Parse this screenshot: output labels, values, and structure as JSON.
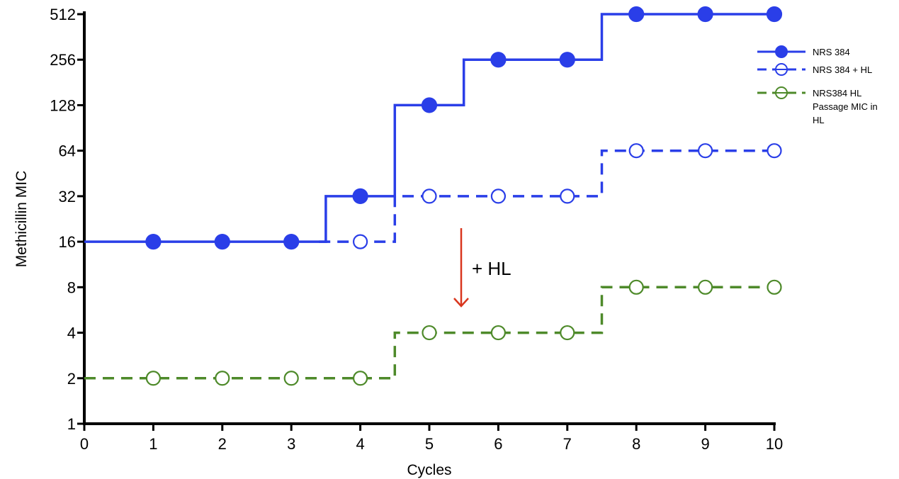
{
  "chart_data": {
    "type": "line",
    "line_style": "step",
    "xlabel": "Cycles",
    "ylabel": "Methicillin MIC",
    "y_scale": "log2",
    "xlim": [
      0,
      10
    ],
    "ylim": [
      1,
      512
    ],
    "x_ticks": [
      "0",
      "1",
      "2",
      "3",
      "4",
      "5",
      "6",
      "7",
      "8",
      "9",
      "10"
    ],
    "y_ticks": [
      "1",
      "2",
      "4",
      "8",
      "16",
      "32",
      "64",
      "128",
      "256",
      "512"
    ],
    "grid": false,
    "legend_position": "right",
    "series": [
      {
        "name": "NRS 384",
        "color": "#2a3ee8",
        "line": "solid",
        "marker": "filled-circle",
        "x": [
          1,
          2,
          3,
          4,
          5,
          6,
          7,
          8,
          9,
          10
        ],
        "y": [
          16,
          16,
          16,
          32,
          128,
          256,
          256,
          512,
          512,
          512
        ]
      },
      {
        "name": "NRS 384 + HL",
        "color": "#2a3ee8",
        "line": "dashed",
        "marker": "open-circle",
        "x": [
          4,
          5,
          6,
          7,
          8,
          9,
          10
        ],
        "y": [
          16,
          32,
          32,
          32,
          64,
          64,
          64
        ]
      },
      {
        "name": "NRS384 HL Passage MIC in HL",
        "color": "#4e8a2a",
        "line": "dashed",
        "marker": "open-circle",
        "x": [
          1,
          2,
          3,
          4,
          5,
          6,
          7,
          8,
          9,
          10
        ],
        "y": [
          2,
          2,
          2,
          2,
          4,
          4,
          4,
          8,
          8,
          8
        ]
      }
    ],
    "legend": [
      {
        "lines": [
          "NRS 384"
        ]
      },
      {
        "lines": [
          "NRS 384 + HL"
        ]
      },
      {
        "lines": [
          "NRS384 HL",
          "Passage MIC in",
          "HL"
        ]
      }
    ],
    "annotations": [
      {
        "text": "+ HL",
        "arrow_color": "#d9361e",
        "arrow_direction": "down"
      }
    ]
  }
}
